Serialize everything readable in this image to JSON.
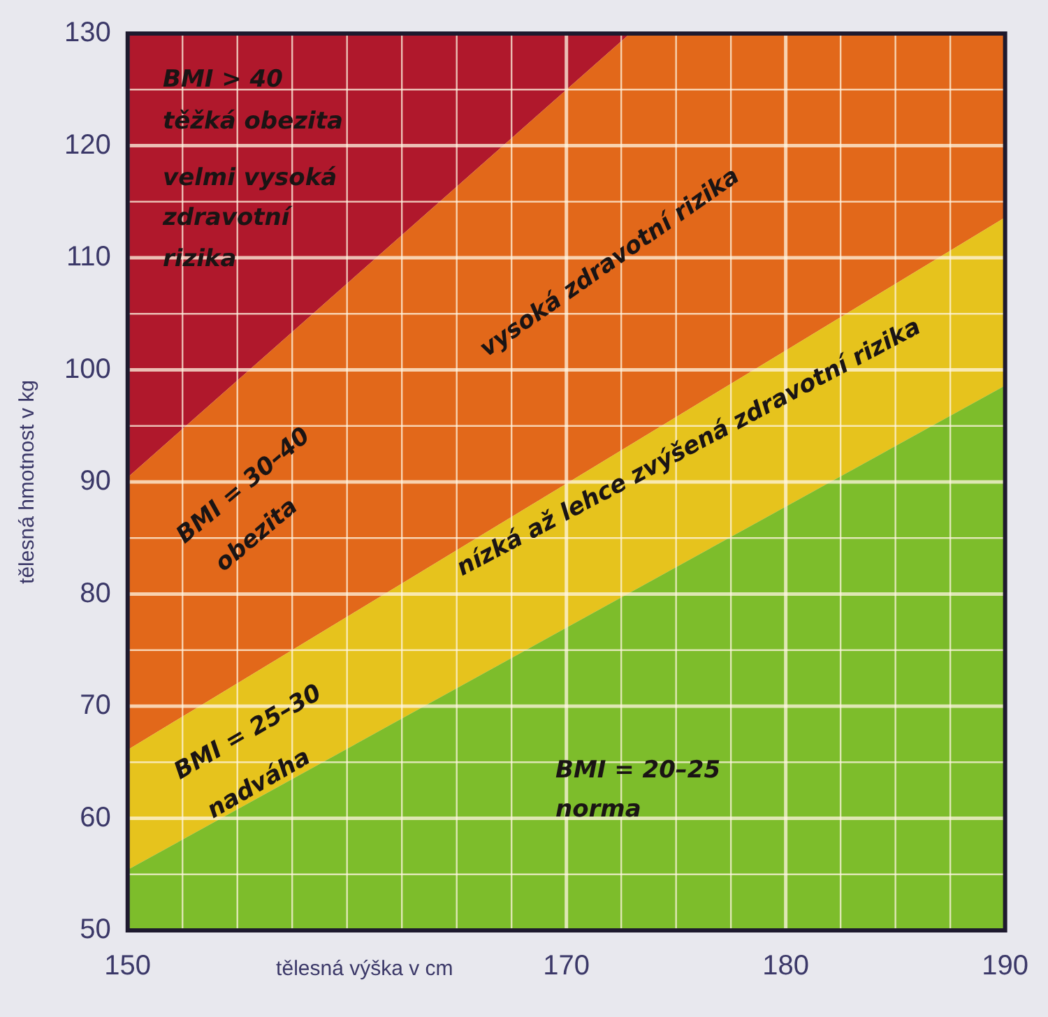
{
  "chart_data": {
    "type": "area",
    "xlabel": "tělesná výška v cm",
    "ylabel": "tělesná hmotnost v kg",
    "xlim": [
      150,
      190
    ],
    "ylim": [
      50,
      130
    ],
    "xticks": [
      150,
      {
        "value": 152.5,
        "label": null
      },
      {
        "value": 155,
        "label": null
      },
      {
        "value": 157.5,
        "label": null
      },
      {
        "value": 160,
        "label": null
      },
      {
        "value": 162.5,
        "label": null
      },
      {
        "value": 165,
        "label": null
      },
      {
        "value": 167.5,
        "label": null
      },
      170,
      {
        "value": 172.5,
        "label": null
      },
      {
        "value": 175,
        "label": null
      },
      {
        "value": 177.5,
        "label": null
      },
      180,
      {
        "value": 182.5,
        "label": null
      },
      {
        "value": 185,
        "label": null
      },
      {
        "value": 187.5,
        "label": null
      },
      190
    ],
    "yticks": [
      50,
      {
        "value": 55,
        "label": null
      },
      60,
      {
        "value": 65,
        "label": null
      },
      70,
      {
        "value": 75,
        "label": null
      },
      80,
      {
        "value": 85,
        "label": null
      },
      90,
      {
        "value": 95,
        "label": null
      },
      100,
      {
        "value": 105,
        "label": null
      },
      110,
      {
        "value": 115,
        "label": null
      },
      120,
      {
        "value": 125,
        "label": null
      },
      130
    ],
    "grid": true,
    "series": [
      {
        "color": "#7dbd2b",
        "x": [
          150,
          190
        ],
        "values": [
          55.4,
          98.6
        ]
      },
      {
        "color": "#e6c31d",
        "x": [
          150,
          190
        ],
        "values": [
          66.1,
          113.6
        ]
      },
      {
        "color": "#e2681a",
        "x": [
          150,
          172.9,
          190
        ],
        "values": [
          90.4,
          130,
          130
        ]
      },
      {
        "color": "#b0182c",
        "x": [
          150,
          190
        ],
        "values": [
          130,
          130
        ]
      }
    ],
    "annotations": [
      "BMI > 40",
      "těžká obezita",
      "velmi vysoká",
      "zdravotní",
      "rizika",
      "vysoká zdravotní rizika",
      "BMI = 30–40",
      "obezita",
      "BMI = 25–30",
      "nadváha",
      "nízká až lehce zvýšená zdravotní rizika",
      "BMI = 20–25",
      "norma"
    ]
  }
}
